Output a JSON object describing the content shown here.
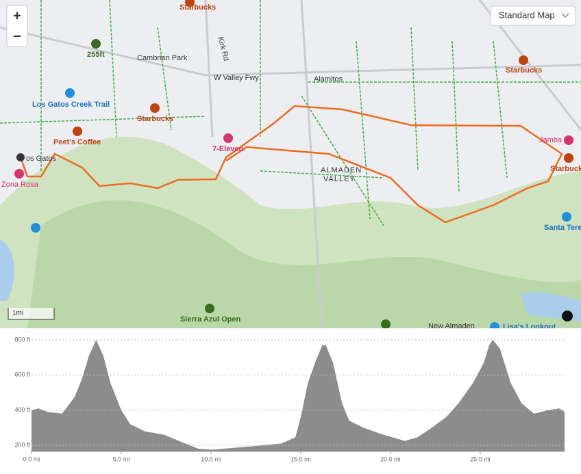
{
  "map": {
    "map_style": "Standard Map",
    "zoom_in": "+",
    "zoom_out": "−",
    "scale": "1mi",
    "labels": [
      "Starbucks",
      "255ft",
      "Cambrian Park",
      "Kirk Rd",
      "W Valley Fwy",
      "Alamitos",
      "Los Gatos Creek Trail",
      "Starbucks",
      "Peet's Coffee",
      "7-Eleven",
      "Starbucks",
      "Jamba",
      "os Gatos",
      "Zona Rosa",
      "Starbuck",
      "ALMADEN",
      "VALLEY",
      "Santa Tere",
      "Sierra Azul Open",
      "New Almaden",
      "Lisa's Lookout"
    ]
  },
  "chart_data": {
    "type": "area",
    "color": "#8c8c8c",
    "x": [
      0,
      0.4,
      0.9,
      1.7,
      2.0,
      2.4,
      2.8,
      3.2,
      3.6,
      4.0,
      4.4,
      5.0,
      5.5,
      6.3,
      7.4,
      8.2,
      8.7,
      9.3,
      10.1,
      11.2,
      12.4,
      13.9,
      14.7,
      15.0,
      15.4,
      15.8,
      16.2,
      16.4,
      16.8,
      17.3,
      17.7,
      18.5,
      19.6,
      20.8,
      21.5,
      22.3,
      23.1,
      23.8,
      24.6,
      25.2,
      25.5,
      25.7,
      26.1,
      26.7,
      27.3,
      28.0,
      28.8,
      29.4,
      29.7
    ],
    "values": [
      400,
      410,
      390,
      380,
      420,
      475,
      575,
      710,
      800,
      710,
      555,
      400,
      320,
      280,
      260,
      225,
      205,
      180,
      175,
      185,
      195,
      210,
      245,
      360,
      555,
      670,
      770,
      770,
      670,
      440,
      340,
      300,
      260,
      225,
      245,
      300,
      360,
      440,
      555,
      670,
      770,
      800,
      750,
      555,
      440,
      380,
      400,
      410,
      390
    ],
    "xlim": [
      0,
      29.7
    ],
    "ylim": [
      165,
      827
    ],
    "xticks": [
      {
        "value": 0,
        "label": "0.0 mi"
      },
      {
        "value": 5,
        "label": "5.0 mi"
      },
      {
        "value": 10,
        "label": "10.0 mi"
      },
      {
        "value": 15,
        "label": "15.0 mi"
      },
      {
        "value": 20,
        "label": "20.0 mi"
      },
      {
        "value": 25,
        "label": "25.0 mi"
      }
    ],
    "yticks": [
      {
        "value": 200,
        "label": "200 ft"
      },
      {
        "value": 400,
        "label": "400 ft"
      },
      {
        "value": 600,
        "label": "600 ft"
      },
      {
        "value": 800,
        "label": "800 ft"
      }
    ],
    "grid": true
  }
}
